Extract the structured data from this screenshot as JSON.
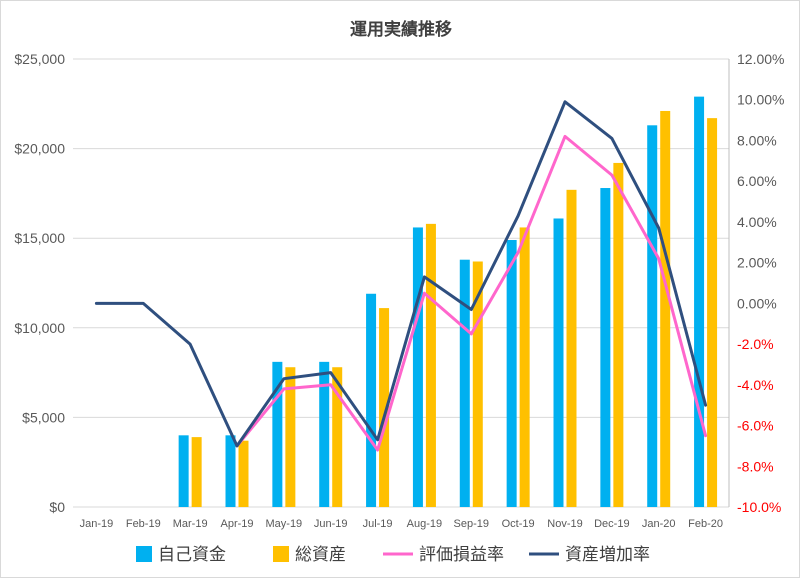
{
  "chart_data": {
    "type": "bar+line",
    "title": "運用実績推移",
    "categories": [
      "Jan-19",
      "Feb-19",
      "Mar-19",
      "Apr-19",
      "May-19",
      "Jun-19",
      "Jul-19",
      "Aug-19",
      "Sep-19",
      "Oct-19",
      "Nov-19",
      "Dec-19",
      "Jan-20",
      "Feb-20"
    ],
    "left_axis": {
      "min": 0,
      "max": 25000,
      "step": 5000,
      "format": "currency",
      "tick_labels": [
        "$0",
        "$5,000",
        "$10,000",
        "$15,000",
        "$20,000",
        "$25,000"
      ]
    },
    "right_axis": {
      "min": -0.1,
      "max": 0.12,
      "step": 0.02,
      "format": "percent",
      "negative_color": "#ff0000",
      "tick_labels": [
        "-10.0%",
        "-8.0%",
        "-6.0%",
        "-4.0%",
        "-2.0%",
        "0.00%",
        "2.00%",
        "4.00%",
        "6.00%",
        "8.00%",
        "10.00%",
        "12.00%"
      ]
    },
    "grid": "horizontal",
    "legend_position": "bottom",
    "series": [
      {
        "name": "自己資金",
        "type": "bar",
        "axis": "left",
        "color": "#00b0f0",
        "values": [
          null,
          null,
          4000,
          4000,
          8100,
          8100,
          11900,
          15600,
          13800,
          14900,
          16100,
          17800,
          21300,
          22900
        ]
      },
      {
        "name": "総資産",
        "type": "bar",
        "axis": "left",
        "color": "#ffc000",
        "values": [
          null,
          null,
          3900,
          3700,
          7800,
          7800,
          11100,
          15800,
          13700,
          15600,
          17700,
          19200,
          22100,
          21700
        ]
      },
      {
        "name": "評価損益率",
        "type": "line",
        "axis": "right",
        "color": "#ff66cc",
        "values": [
          null,
          null,
          null,
          -0.07,
          -0.042,
          -0.04,
          -0.072,
          0.005,
          -0.015,
          0.025,
          0.082,
          0.063,
          0.022,
          -0.065
        ]
      },
      {
        "name": "資産増加率",
        "type": "line",
        "axis": "right",
        "color": "#2f4f7f",
        "values": [
          0.0,
          0.0,
          -0.02,
          -0.07,
          -0.037,
          -0.034,
          -0.067,
          0.013,
          -0.003,
          0.043,
          0.099,
          0.081,
          0.037,
          -0.05
        ]
      }
    ]
  }
}
